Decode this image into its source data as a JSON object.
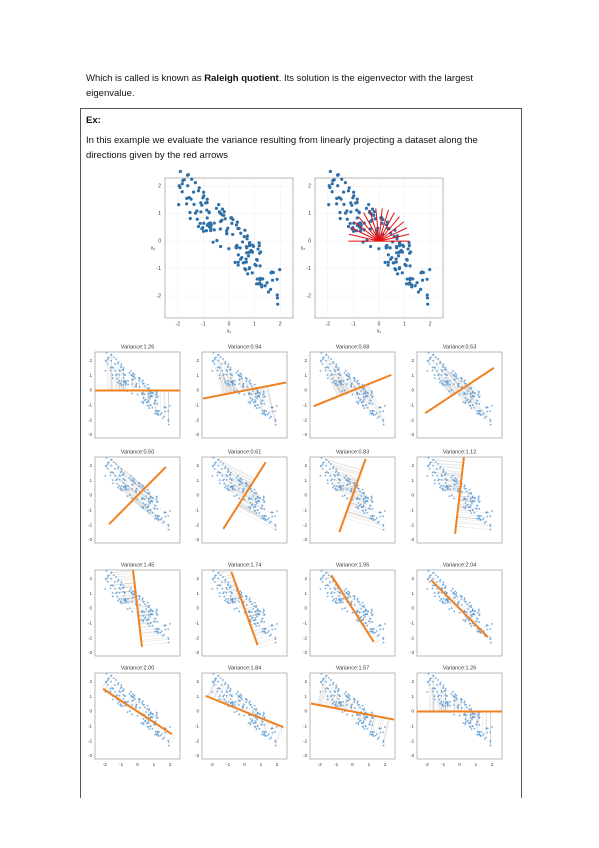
{
  "intro": {
    "before": "Which is called is known as ",
    "bold": "Raleigh quotient",
    "after": ". Its solution is the eigenvector with the largest eigenvalue."
  },
  "example": {
    "label": "Ex:",
    "text": "In this example we evaluate the variance resulting from linearly projecting a dataset along the directions given by the red arrows"
  },
  "top_figure": {
    "x_label": "x₁",
    "y_label": "x₂",
    "xticks": [
      -2,
      -1,
      0,
      1,
      2
    ],
    "yticks": [
      2,
      1,
      0,
      -1,
      -2
    ]
  },
  "panels": {
    "titles": [
      "Variance:1.26",
      "Variance:0.94",
      "Variance:0.68",
      "Variance:0.53",
      "Variance:0.50",
      "Variance:0.61",
      "Variance:0.83",
      "Variance:1.12",
      "Variance:1.45",
      "Variance:1.74",
      "Variance:1.95",
      "Variance:2.04",
      "Variance:2.00",
      "Variance:1.84",
      "Variance:1.57",
      "Variance:1.26"
    ],
    "xticks": [
      -2,
      -1,
      0,
      1,
      2
    ],
    "yticks": [
      2,
      1,
      0,
      -1,
      -2,
      -3
    ]
  }
}
